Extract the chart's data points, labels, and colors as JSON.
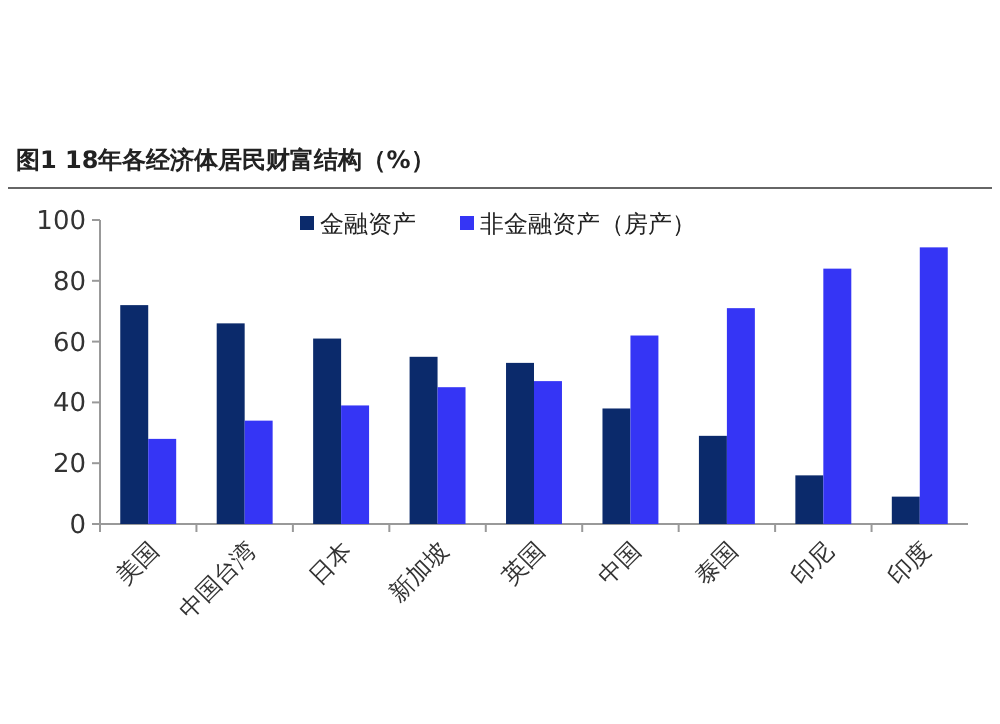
{
  "chart_data": {
    "type": "bar",
    "title": "图1  18年各经济体居民财富结构（%）",
    "categories": [
      "美国",
      "中国台湾",
      "日本",
      "新加坡",
      "英国",
      "中国",
      "泰国",
      "印尼",
      "印度"
    ],
    "series": [
      {
        "name": "金融资产",
        "color": "#0b2a6b",
        "values": [
          72,
          66,
          61,
          55,
          53,
          38,
          29,
          16,
          9
        ]
      },
      {
        "name": "非金融资产（房产）",
        "color": "#3535f5",
        "values": [
          28,
          34,
          39,
          45,
          47,
          62,
          71,
          84,
          91
        ]
      }
    ],
    "ylim": [
      0,
      100
    ],
    "yticks": [
      0,
      20,
      40,
      60,
      80,
      100
    ],
    "legend": "top",
    "grid": false
  }
}
